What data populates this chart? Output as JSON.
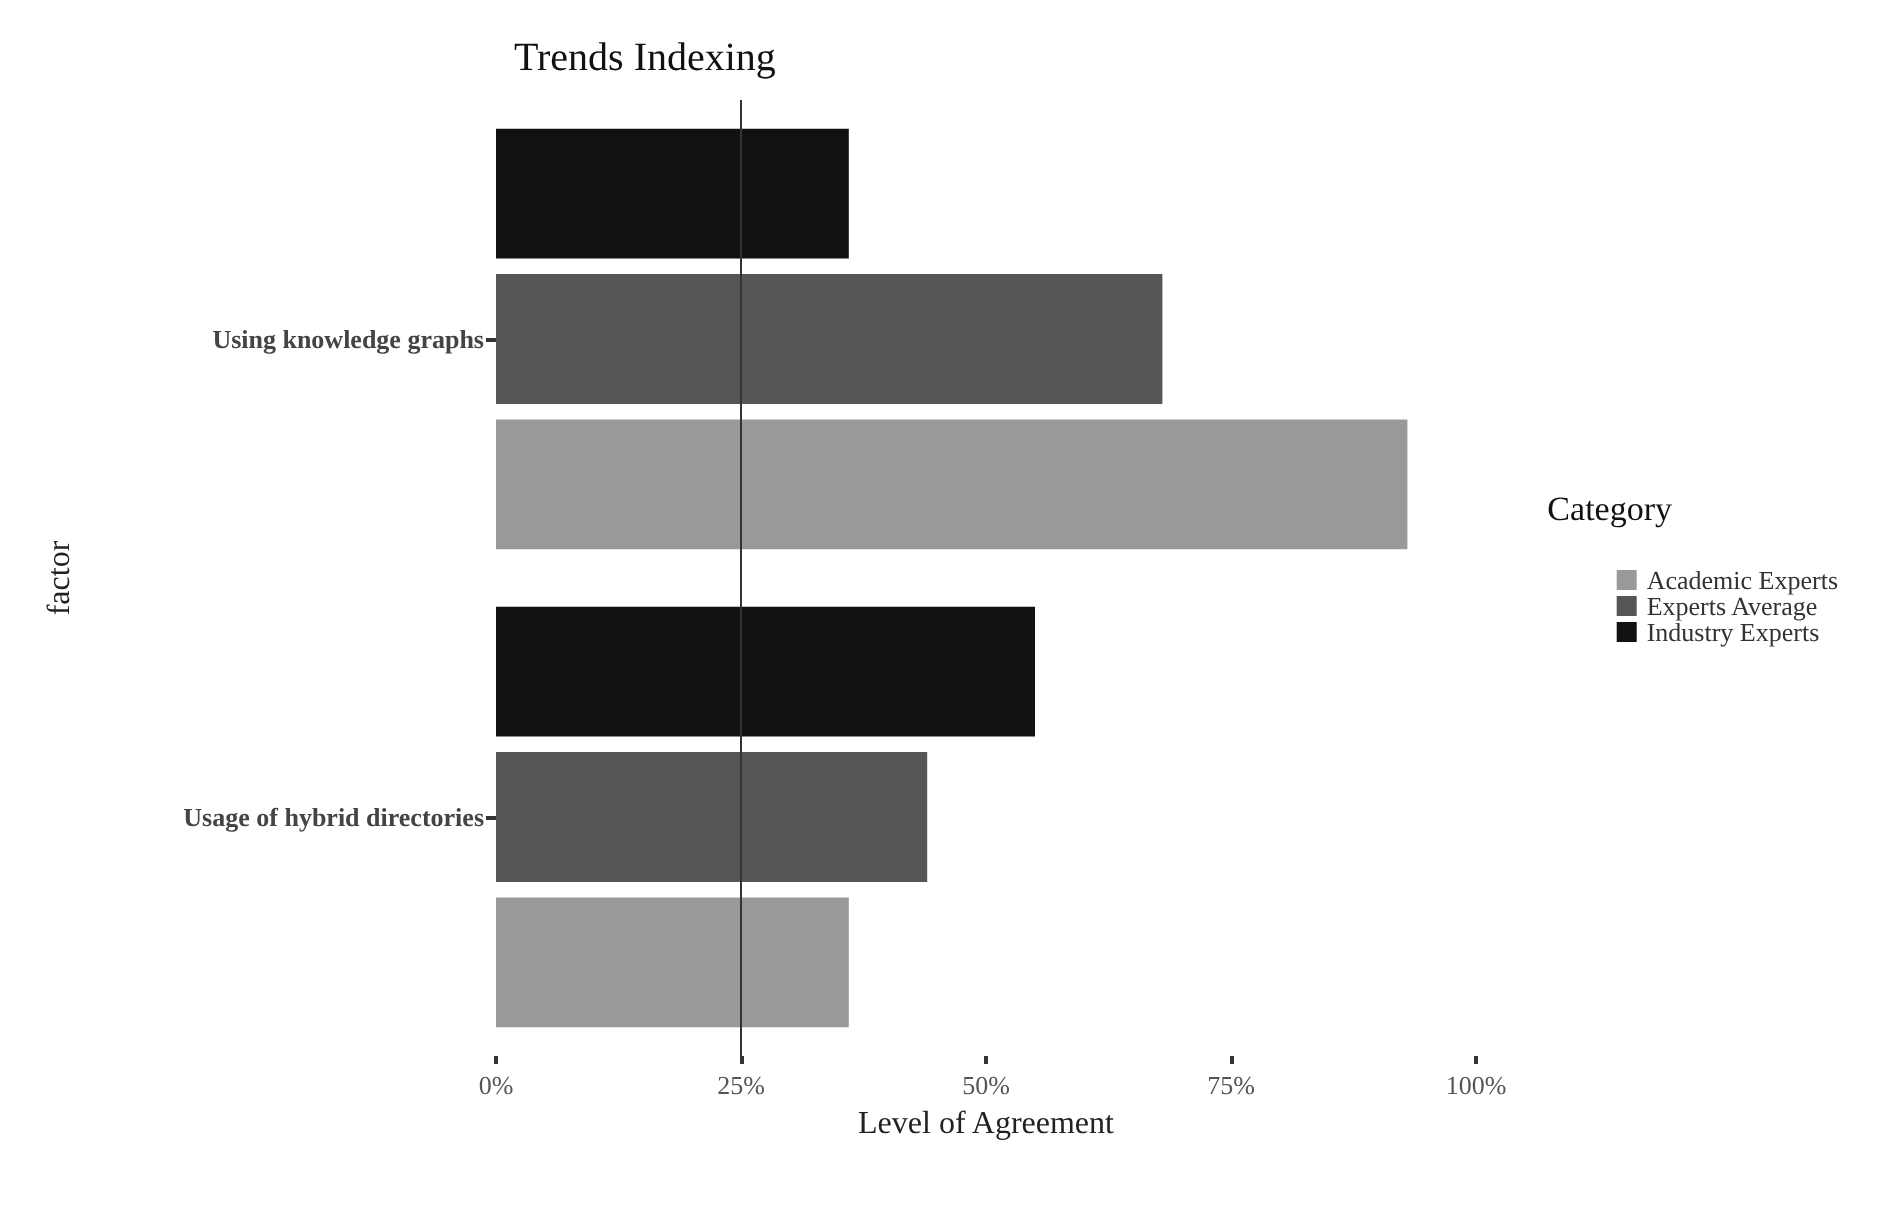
{
  "chart_data": {
    "type": "bar",
    "orientation": "horizontal",
    "title": "Trends Indexing",
    "xlabel": "Level of Agreement",
    "ylabel": "factor",
    "legend_title": "Category",
    "categories": [
      "Using knowledge graphs",
      "Usage of hybrid directories"
    ],
    "series": [
      {
        "name": "Academic Experts",
        "color": "#999999",
        "values": [
          93,
          36
        ]
      },
      {
        "name": "Experts Average",
        "color": "#555555",
        "values": [
          68,
          44
        ]
      },
      {
        "name": "Industry Experts",
        "color": "#111111",
        "values": [
          36,
          55
        ]
      }
    ],
    "xlim": [
      0,
      100
    ],
    "xticks": [
      {
        "value": 0,
        "label": "0%"
      },
      {
        "value": 25,
        "label": "25%"
      },
      {
        "value": 50,
        "label": "50%"
      },
      {
        "value": 75,
        "label": "75%"
      },
      {
        "value": 100,
        "label": "100%"
      }
    ],
    "ref_lines": [
      {
        "axis": "x",
        "value": 25,
        "color": "#333333"
      }
    ],
    "grid": false,
    "legend": "right"
  }
}
